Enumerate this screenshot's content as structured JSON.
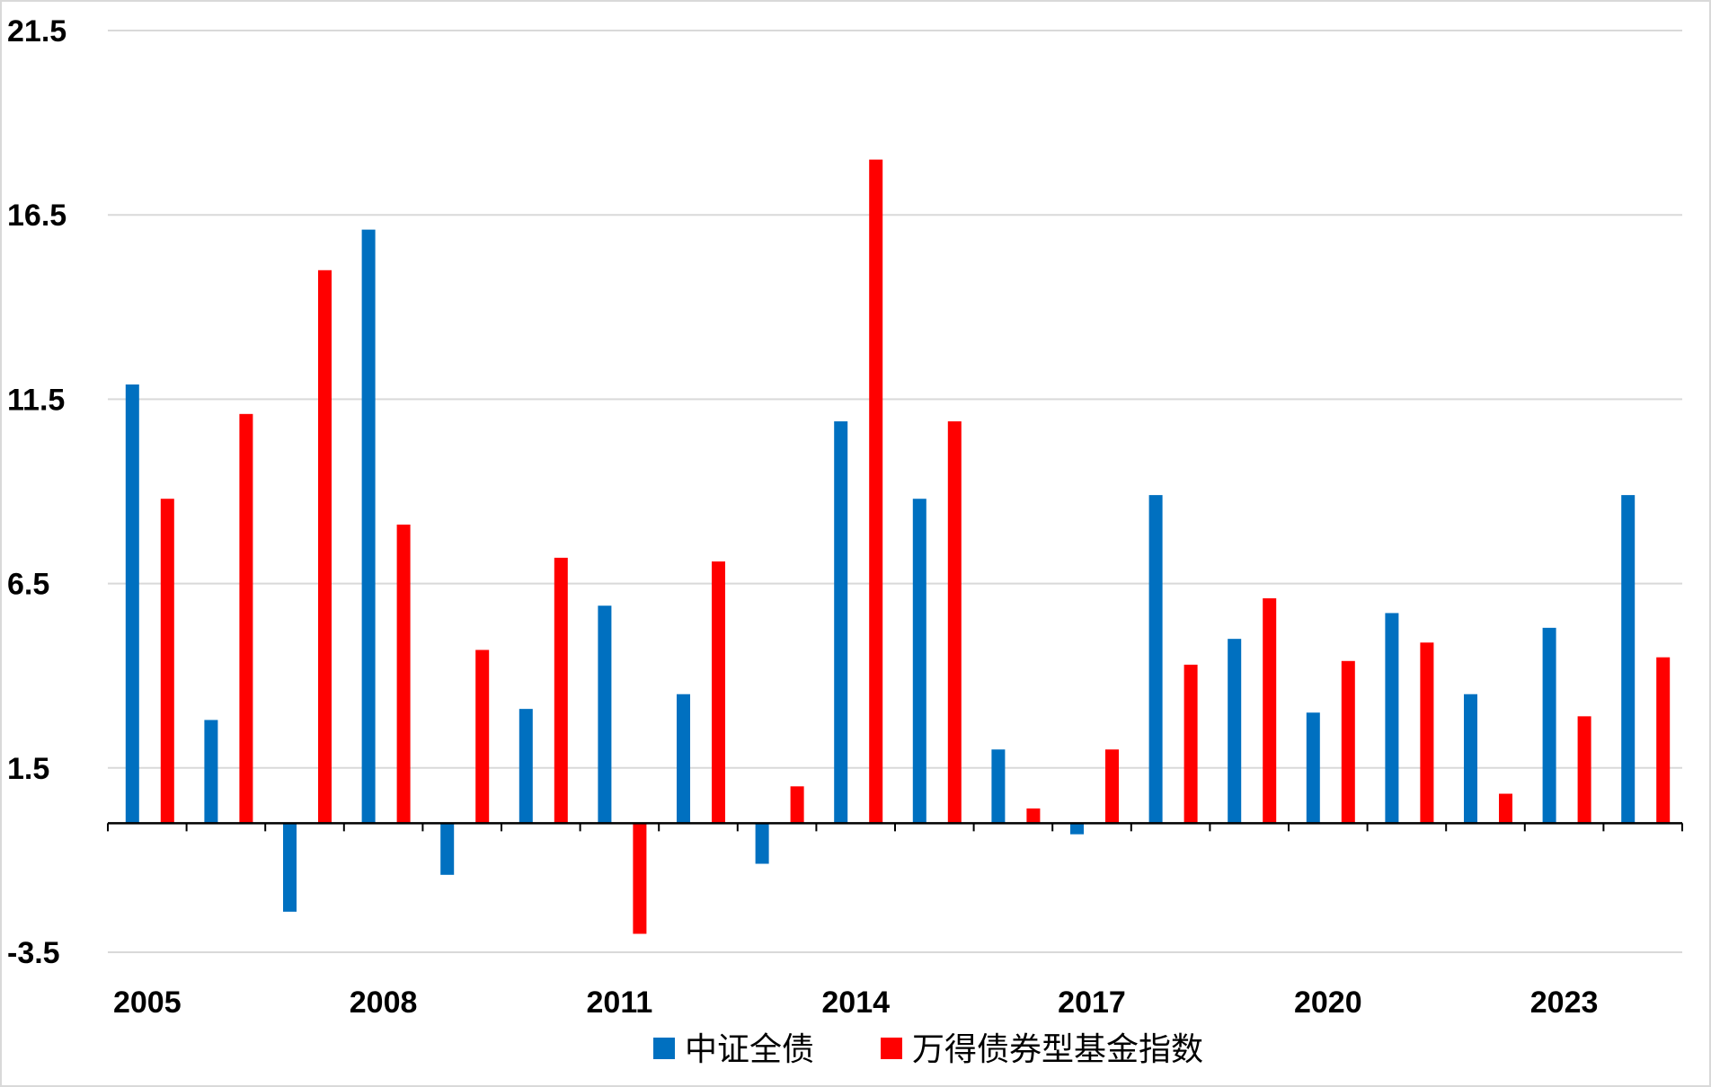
{
  "chart_data": {
    "type": "bar",
    "categories": [
      "2005",
      "2006",
      "2007",
      "2008",
      "2009",
      "2010",
      "2011",
      "2012",
      "2013",
      "2014",
      "2015",
      "2016",
      "2017",
      "2018",
      "2019",
      "2020",
      "2021",
      "2022",
      "2023",
      "2024"
    ],
    "x_tick_labels": [
      "2005",
      "2008",
      "2011",
      "2014",
      "2017",
      "2020",
      "2023"
    ],
    "series": [
      {
        "name": "中证全债",
        "color": "#0070C0",
        "values": [
          11.9,
          2.8,
          -2.4,
          16.1,
          -1.4,
          3.1,
          5.9,
          3.5,
          -1.1,
          10.9,
          8.8,
          2.0,
          -0.3,
          8.9,
          5.0,
          3.0,
          5.7,
          3.5,
          5.3,
          8.9
        ]
      },
      {
        "name": "万得债券型基金指数",
        "color": "#FF0000",
        "values": [
          8.8,
          11.1,
          15.0,
          8.1,
          4.7,
          7.2,
          -3.0,
          7.1,
          1.0,
          18.0,
          10.9,
          0.4,
          2.0,
          4.3,
          6.1,
          4.4,
          4.9,
          0.8,
          2.9,
          4.5
        ]
      }
    ],
    "y_ticks": [
      -3.5,
      1.5,
      6.5,
      11.5,
      16.5,
      21.5
    ],
    "ylim": [
      -3.5,
      21.5
    ],
    "grid": true,
    "legend": "bottom",
    "title": "",
    "xlabel": "",
    "ylabel": ""
  }
}
